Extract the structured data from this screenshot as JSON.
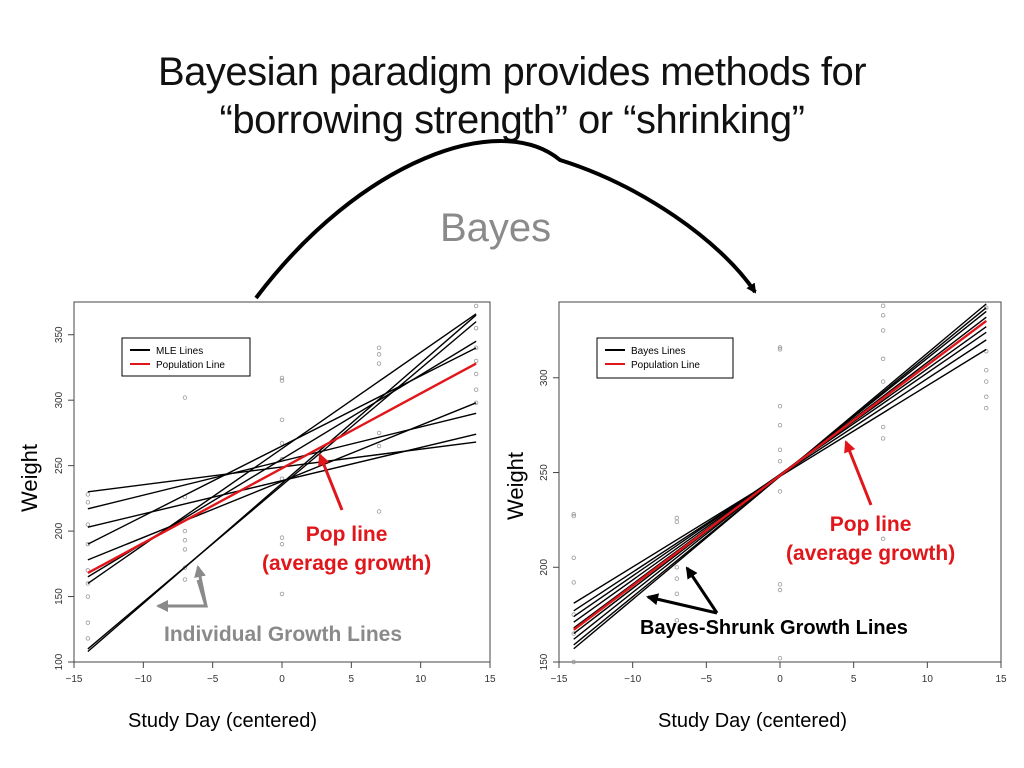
{
  "slide": {
    "title_line1": "Bayesian paradigm provides methods for",
    "title_line2": "“borrowing strength” or “shrinking”",
    "bayes_label": "Bayes"
  },
  "colors": {
    "individual": "#000000",
    "population": "#e0161b",
    "annotation_gray": "#8a8a8a",
    "points": "#999999"
  },
  "chart_data": [
    {
      "type": "line",
      "ylabel": "Weight",
      "xlabel": "Study Day (centered)",
      "xlim": [
        -15,
        15
      ],
      "ylim": [
        100,
        375
      ],
      "xticks": [
        -15,
        -10,
        -5,
        0,
        5,
        10,
        15
      ],
      "yticks": [
        100,
        150,
        200,
        250,
        300,
        350
      ],
      "grid": false,
      "legend": {
        "position": "top-left",
        "entries": [
          {
            "label": "MLE Lines",
            "color": "#000000"
          },
          {
            "label": "Population Line",
            "color": "#e0161b"
          }
        ]
      },
      "population_line": {
        "x": [
          -14,
          14
        ],
        "y": [
          168,
          328
        ]
      },
      "individual_lines": [
        {
          "x": [
            -14,
            14
          ],
          "y": [
            108,
            365
          ]
        },
        {
          "x": [
            -14,
            14
          ],
          "y": [
            110,
            360
          ]
        },
        {
          "x": [
            -14,
            14
          ],
          "y": [
            160,
            366
          ]
        },
        {
          "x": [
            -14,
            14
          ],
          "y": [
            165,
            345
          ]
        },
        {
          "x": [
            -14,
            14
          ],
          "y": [
            190,
            340
          ]
        },
        {
          "x": [
            -14,
            14
          ],
          "y": [
            178,
            298
          ]
        },
        {
          "x": [
            -14,
            14
          ],
          "y": [
            217,
            290
          ]
        },
        {
          "x": [
            -14,
            14
          ],
          "y": [
            203,
            274
          ]
        },
        {
          "x": [
            -14,
            14
          ],
          "y": [
            230,
            268
          ]
        }
      ],
      "points": [
        {
          "x": -14,
          "y": 228
        },
        {
          "x": -14,
          "y": 222
        },
        {
          "x": -14,
          "y": 205
        },
        {
          "x": -14,
          "y": 190
        },
        {
          "x": -14,
          "y": 170
        },
        {
          "x": -14,
          "y": 160
        },
        {
          "x": -14,
          "y": 150
        },
        {
          "x": -14,
          "y": 130
        },
        {
          "x": -14,
          "y": 118
        },
        {
          "x": -7,
          "y": 302
        },
        {
          "x": -7,
          "y": 226
        },
        {
          "x": -7,
          "y": 200
        },
        {
          "x": -7,
          "y": 193
        },
        {
          "x": -7,
          "y": 186
        },
        {
          "x": -7,
          "y": 172
        },
        {
          "x": -7,
          "y": 163
        },
        {
          "x": 0,
          "y": 317
        },
        {
          "x": 0,
          "y": 315
        },
        {
          "x": 0,
          "y": 285
        },
        {
          "x": 0,
          "y": 267
        },
        {
          "x": 0,
          "y": 255
        },
        {
          "x": 0,
          "y": 240
        },
        {
          "x": 0,
          "y": 195
        },
        {
          "x": 0,
          "y": 190
        },
        {
          "x": 0,
          "y": 152
        },
        {
          "x": 7,
          "y": 340
        },
        {
          "x": 7,
          "y": 335
        },
        {
          "x": 7,
          "y": 328
        },
        {
          "x": 7,
          "y": 275
        },
        {
          "x": 7,
          "y": 265
        },
        {
          "x": 7,
          "y": 215
        },
        {
          "x": 14,
          "y": 372
        },
        {
          "x": 14,
          "y": 355
        },
        {
          "x": 14,
          "y": 340
        },
        {
          "x": 14,
          "y": 330
        },
        {
          "x": 14,
          "y": 320
        },
        {
          "x": 14,
          "y": 308
        },
        {
          "x": 14,
          "y": 298
        }
      ],
      "annotations": {
        "pop_line_1": "Pop line",
        "pop_line_2": "(average growth)",
        "individual": "Individual Growth Lines"
      }
    },
    {
      "type": "line",
      "ylabel": "Weight",
      "xlabel": "Study Day (centered)",
      "xlim": [
        -15,
        15
      ],
      "ylim": [
        150,
        340
      ],
      "xticks": [
        -15,
        -10,
        -5,
        0,
        5,
        10,
        15
      ],
      "yticks": [
        150,
        200,
        250,
        300
      ],
      "grid": false,
      "legend": {
        "position": "top-left",
        "entries": [
          {
            "label": "Bayes Lines",
            "color": "#000000"
          },
          {
            "label": "Population Line",
            "color": "#e0161b"
          }
        ]
      },
      "population_line": {
        "x": [
          -14,
          14
        ],
        "y": [
          167,
          330
        ]
      },
      "individual_lines": [
        {
          "x": [
            -14,
            14
          ],
          "y": [
            181,
            315
          ]
        },
        {
          "x": [
            -14,
            14
          ],
          "y": [
            177,
            320
          ]
        },
        {
          "x": [
            -14,
            14
          ],
          "y": [
            174,
            324
          ]
        },
        {
          "x": [
            -14,
            14
          ],
          "y": [
            171,
            327
          ]
        },
        {
          "x": [
            -14,
            14
          ],
          "y": [
            168,
            330
          ]
        },
        {
          "x": [
            -14,
            14
          ],
          "y": [
            165,
            332
          ]
        },
        {
          "x": [
            -14,
            14
          ],
          "y": [
            162,
            335
          ]
        },
        {
          "x": [
            -14,
            14
          ],
          "y": [
            159,
            337
          ]
        },
        {
          "x": [
            -14,
            14
          ],
          "y": [
            157,
            339
          ]
        }
      ],
      "points": [
        {
          "x": -14,
          "y": 228
        },
        {
          "x": -14,
          "y": 227
        },
        {
          "x": -14,
          "y": 205
        },
        {
          "x": -14,
          "y": 192
        },
        {
          "x": -14,
          "y": 175
        },
        {
          "x": -14,
          "y": 165
        },
        {
          "x": -14,
          "y": 150
        },
        {
          "x": -7,
          "y": 303
        },
        {
          "x": -7,
          "y": 226
        },
        {
          "x": -7,
          "y": 224
        },
        {
          "x": -7,
          "y": 200
        },
        {
          "x": -7,
          "y": 194
        },
        {
          "x": -7,
          "y": 186
        },
        {
          "x": -7,
          "y": 172
        },
        {
          "x": 0,
          "y": 316
        },
        {
          "x": 0,
          "y": 315
        },
        {
          "x": 0,
          "y": 285
        },
        {
          "x": 0,
          "y": 275
        },
        {
          "x": 0,
          "y": 262
        },
        {
          "x": 0,
          "y": 256
        },
        {
          "x": 0,
          "y": 240
        },
        {
          "x": 0,
          "y": 191
        },
        {
          "x": 0,
          "y": 188
        },
        {
          "x": 0,
          "y": 152
        },
        {
          "x": 7,
          "y": 338
        },
        {
          "x": 7,
          "y": 333
        },
        {
          "x": 7,
          "y": 325
        },
        {
          "x": 7,
          "y": 310
        },
        {
          "x": 7,
          "y": 298
        },
        {
          "x": 7,
          "y": 274
        },
        {
          "x": 7,
          "y": 268
        },
        {
          "x": 7,
          "y": 215
        },
        {
          "x": 14,
          "y": 337
        },
        {
          "x": 14,
          "y": 314
        },
        {
          "x": 14,
          "y": 304
        },
        {
          "x": 14,
          "y": 298
        },
        {
          "x": 14,
          "y": 290
        },
        {
          "x": 14,
          "y": 284
        }
      ],
      "annotations": {
        "pop_line_1": "Pop line",
        "pop_line_2": "(average growth)",
        "shrunk": "Bayes-Shrunk Growth Lines"
      }
    }
  ]
}
